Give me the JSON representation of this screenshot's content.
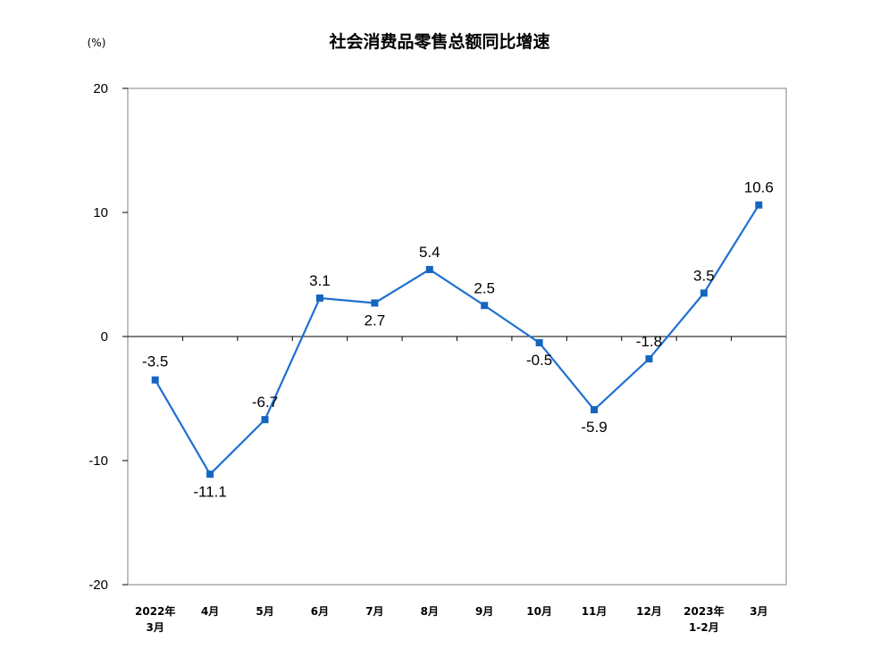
{
  "chart_data": {
    "type": "line",
    "title": "社会消费品零售总额同比增速",
    "unit": "(%)",
    "ylim": [
      -20,
      20
    ],
    "yticks": [
      "20",
      "10",
      "0",
      "-10",
      "-20"
    ],
    "categories": [
      [
        "2022年",
        "3月"
      ],
      [
        "4月"
      ],
      [
        "5月"
      ],
      [
        "6月"
      ],
      [
        "7月"
      ],
      [
        "8月"
      ],
      [
        "9月"
      ],
      [
        "10月"
      ],
      [
        "11月"
      ],
      [
        "12月"
      ],
      [
        "2023年",
        "1-2月"
      ],
      [
        "3月"
      ]
    ],
    "values": [
      -3.5,
      -11.1,
      -6.7,
      3.1,
      2.7,
      5.4,
      2.5,
      -0.5,
      -5.9,
      -1.8,
      3.5,
      10.6
    ],
    "value_labels": [
      "-3.5",
      "-11.1",
      "-6.7",
      "3.1",
      "2.7",
      "5.4",
      "2.5",
      "-0.5",
      "-5.9",
      "-1.8",
      "3.5",
      "10.6"
    ],
    "line_color": "#1f6fd1",
    "marker_color": "#1565c0",
    "grid": false,
    "legend": "none"
  }
}
